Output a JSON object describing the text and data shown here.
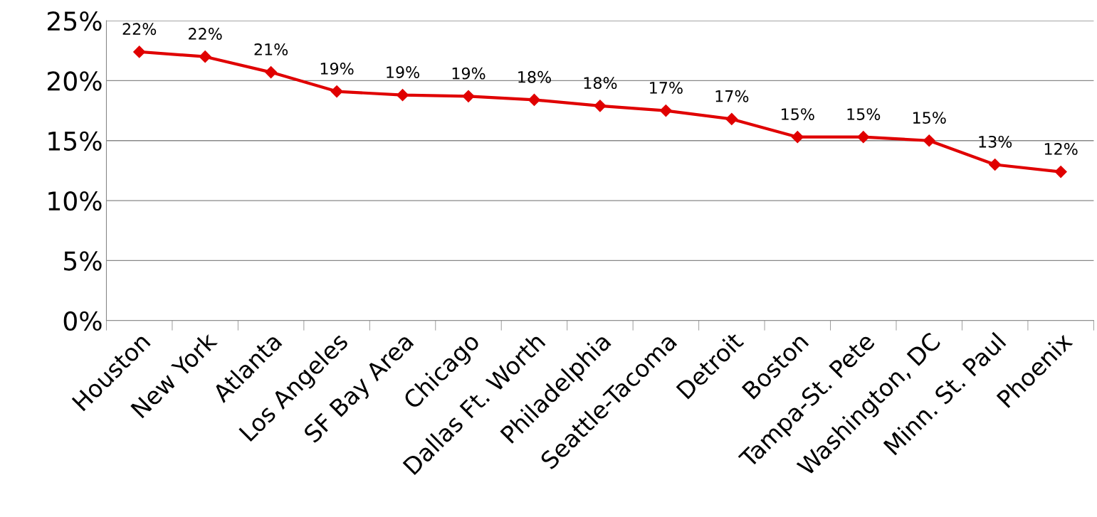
{
  "chart_data": {
    "type": "line",
    "categories": [
      "Houston",
      "New York",
      "Atlanta",
      "Los Angeles",
      "SF Bay Area",
      "Chicago",
      "Dallas Ft. Worth",
      "Philadelphia",
      "Seattle-Tacoma",
      "Detroit",
      "Boston",
      "Tampa-St. Pete",
      "Washington, DC",
      "Minn. St. Paul",
      "Phoenix"
    ],
    "series": [
      {
        "color": "#e00000",
        "values": [
          22.4,
          22.0,
          20.7,
          19.1,
          18.8,
          18.7,
          18.4,
          17.9,
          17.5,
          16.8,
          15.3,
          15.3,
          15.0,
          13.0,
          12.4
        ],
        "value_labels": [
          "22%",
          "22%",
          "21%",
          "19%",
          "19%",
          "19%",
          "18%",
          "18%",
          "17%",
          "17%",
          "15%",
          "15%",
          "15%",
          "13%",
          "12%"
        ]
      }
    ],
    "ylim": [
      0,
      25
    ],
    "yticks": [
      {
        "value": 0,
        "label": "0%"
      },
      {
        "value": 5,
        "label": "5%"
      },
      {
        "value": 10,
        "label": "10%"
      },
      {
        "value": 15,
        "label": "15%"
      },
      {
        "value": 20,
        "label": "20%"
      },
      {
        "value": 25,
        "label": "25%"
      }
    ],
    "grid": "y",
    "marker": "diamond",
    "line_style": "solid"
  }
}
